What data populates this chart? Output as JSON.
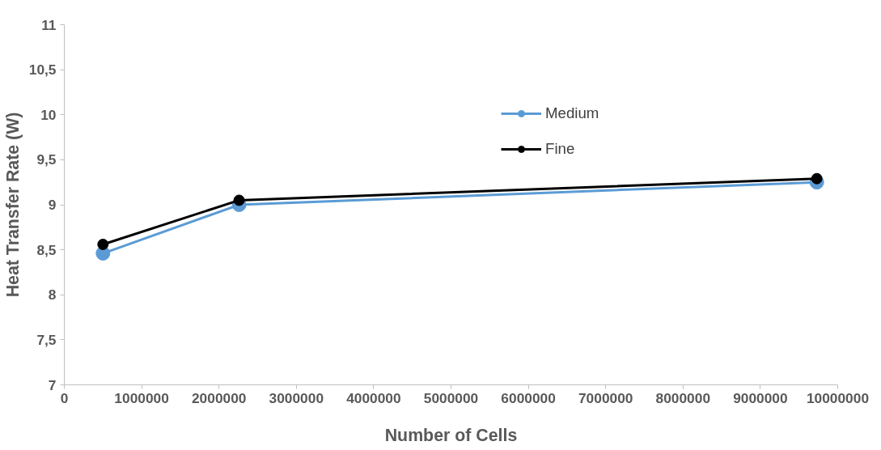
{
  "chart_data": {
    "type": "line",
    "xlabel": "Number of Cells",
    "ylabel": "Heat Transfer Rate (W)",
    "x": [
      500000,
      2260000,
      9730000
    ],
    "series": [
      {
        "name": "Medium",
        "color": "#5b9bd5",
        "values": [
          8.46,
          9.0,
          9.25
        ]
      },
      {
        "name": "Fine",
        "color": "#000000",
        "values": [
          8.56,
          9.05,
          9.29
        ]
      }
    ],
    "xlim": [
      0,
      10000000
    ],
    "xticks": [
      0,
      1000000,
      2000000,
      3000000,
      4000000,
      5000000,
      6000000,
      7000000,
      8000000,
      9000000,
      10000000
    ],
    "ylim": [
      7,
      11
    ],
    "yticks": [
      7,
      {
        "value": 7.5,
        "label": "7,5"
      },
      8,
      {
        "value": 8.5,
        "label": "8,5"
      },
      9,
      {
        "value": 9.5,
        "label": "9,5"
      },
      10,
      {
        "value": 10.5,
        "label": "10,5"
      },
      11
    ],
    "marker": "circle",
    "line_style": "solid",
    "grid": false,
    "legend": "top right"
  }
}
